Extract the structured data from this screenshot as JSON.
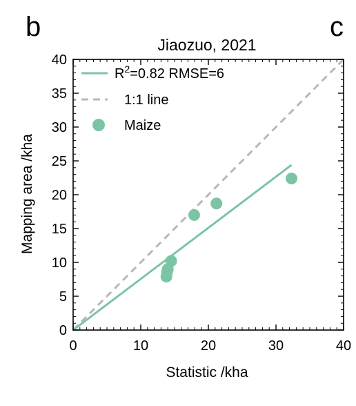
{
  "panel_labels": {
    "left": "b",
    "right": "c"
  },
  "legend": {
    "fit_label_prefix": "R",
    "fit_label_sup": "2",
    "fit_label_suffix": "=0.82 RMSE=6",
    "one_to_one_label": "1:1 line",
    "points_label": "Maize"
  },
  "colors": {
    "fit": "#7cc4a6",
    "points": "#7cc4a6",
    "one_to_one": "#b8b8bc",
    "frame": "#000000"
  },
  "chart_data": {
    "type": "scatter",
    "title": "Jiaozuo, 2021",
    "xlabel": "Statistic /kha",
    "ylabel": "Mapping area /kha",
    "xlim": [
      0,
      40
    ],
    "ylim": [
      0,
      40
    ],
    "xticks": [
      0,
      10,
      20,
      30,
      40
    ],
    "yticks": [
      0,
      5,
      10,
      15,
      20,
      25,
      30,
      35,
      40
    ],
    "grid": false,
    "legend_position": "top-left",
    "series": [
      {
        "name": "Maize",
        "kind": "points",
        "x": [
          13.8,
          13.9,
          14.0,
          14.5,
          17.9,
          21.2,
          32.3
        ],
        "y": [
          7.9,
          8.6,
          9.0,
          10.2,
          17.0,
          18.7,
          22.4
        ]
      },
      {
        "name": "R2=0.82 RMSE=6",
        "kind": "fit-line",
        "x": [
          0,
          32.3
        ],
        "y": [
          0,
          24.4
        ]
      },
      {
        "name": "1:1 line",
        "kind": "reference-line",
        "x": [
          0,
          40
        ],
        "y": [
          0,
          40
        ]
      }
    ]
  }
}
